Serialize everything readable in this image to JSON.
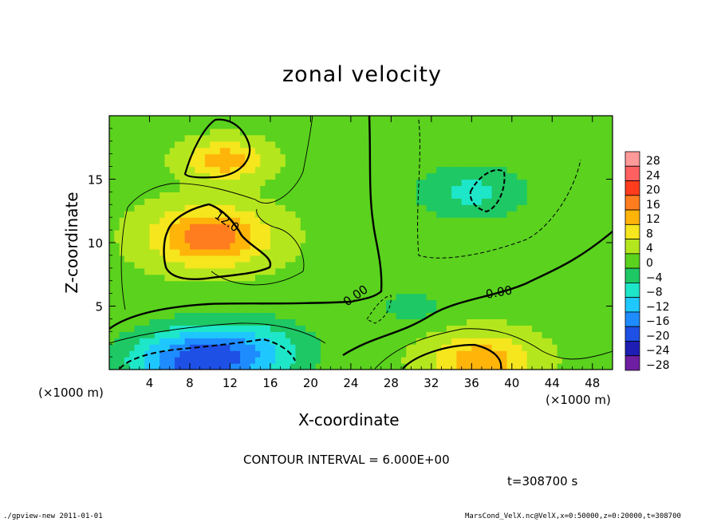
{
  "chart_data": {
    "type": "heatmap",
    "title": "zonal velocity",
    "xlabel": "X-coordinate",
    "ylabel": "Z-coordinate",
    "x_unit": "(×1000 m)",
    "y_unit": "(×1000 m)",
    "xlim": [
      0,
      50
    ],
    "ylim": [
      0,
      20
    ],
    "x_ticks": [
      4,
      8,
      12,
      16,
      20,
      24,
      28,
      32,
      36,
      40,
      44,
      48
    ],
    "y_ticks": [
      5,
      10,
      15
    ],
    "contour_labels": [
      "12.0",
      "0.00",
      "0.00",
      "0.00"
    ],
    "contour_interval_text": "CONTOUR INTERVAL = 6.000E+00",
    "time_text": "t=308700 s",
    "colorbar": {
      "levels": [
        -28,
        -24,
        -20,
        -16,
        -12,
        -8,
        -4,
        0,
        4,
        8,
        12,
        16,
        20,
        24,
        28
      ],
      "labels": [
        "28",
        "24",
        "20",
        "16",
        "12",
        "8",
        "4",
        "0",
        "−4",
        "−8",
        "−12",
        "−16",
        "−20",
        "−24",
        "−28"
      ],
      "colors": [
        "#ff9a9a",
        "#ff6060",
        "#ff3c1e",
        "#ff7d1e",
        "#ffb40a",
        "#f5e61e",
        "#b4e61e",
        "#5ad21e",
        "#1ec864",
        "#1ee6c8",
        "#1ec8ff",
        "#1e8cff",
        "#1e50e6",
        "#1e1eb4",
        "#6e1ea0"
      ]
    },
    "field_features": [
      {
        "x": 10,
        "z": 10.5,
        "value": 16,
        "sigma": 4.0
      },
      {
        "x": 11.5,
        "z": 16.5,
        "value": 12,
        "sigma": 2.6
      },
      {
        "x": 8,
        "z": 0.6,
        "value": -18,
        "sigma": 4.5
      },
      {
        "x": 14,
        "z": 1.5,
        "value": -10,
        "sigma": 4.5
      },
      {
        "x": 36,
        "z": 14,
        "value": -8,
        "sigma": 4.0
      },
      {
        "x": 37,
        "z": 0.8,
        "value": 12,
        "sigma": 3.5
      },
      {
        "x": 30,
        "z": 5,
        "value": -5,
        "sigma": 2.5
      }
    ]
  },
  "footer": {
    "left": "./gpview-new   2011-01-01",
    "right": "MarsCond_VelX.nc@VelX,x=0:50000,z=0:20000,t=308700"
  }
}
